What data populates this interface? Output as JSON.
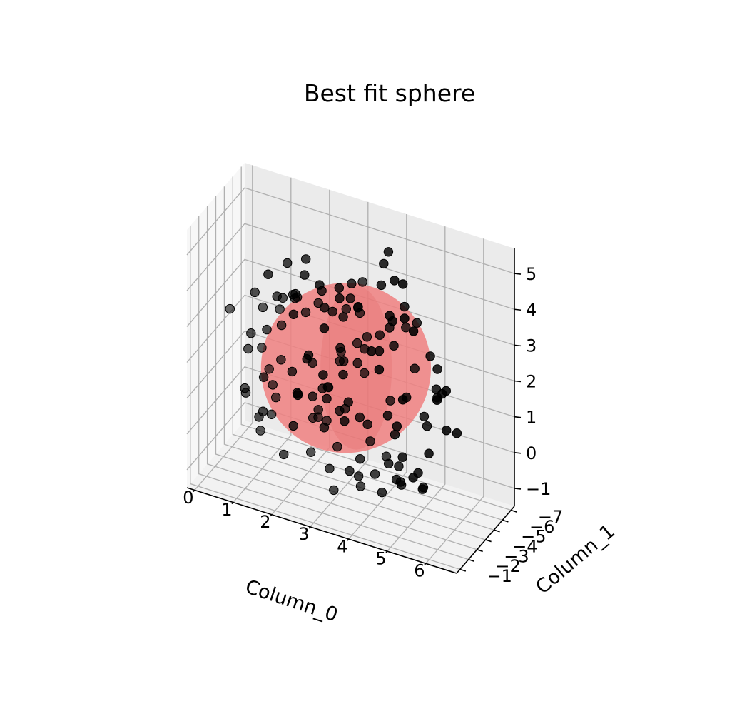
{
  "chart_data": {
    "type": "scatter",
    "title": "Best fit sphere",
    "xlabel": "Column_0",
    "ylabel": "Column_1",
    "zlabel": "",
    "grid": true,
    "xlim": [
      -0.2,
      6.8
    ],
    "ylim": [
      -7.4,
      -0.6
    ],
    "zlim": [
      -1.5,
      5.7
    ],
    "xticks": [
      {
        "v": 0,
        "label": "0"
      },
      {
        "v": 1,
        "label": "1"
      },
      {
        "v": 2,
        "label": "2"
      },
      {
        "v": 3,
        "label": "3"
      },
      {
        "v": 4,
        "label": "4"
      },
      {
        "v": 5,
        "label": "5"
      },
      {
        "v": 6,
        "label": "6"
      }
    ],
    "yticks": [
      {
        "v": -7,
        "label": "−7"
      },
      {
        "v": -6,
        "label": "−6"
      },
      {
        "v": -5,
        "label": "−5"
      },
      {
        "v": -4,
        "label": "−4"
      },
      {
        "v": -3,
        "label": "−3"
      },
      {
        "v": -2,
        "label": "−2"
      },
      {
        "v": -1,
        "label": "−1"
      }
    ],
    "zticks": [
      {
        "v": -1,
        "label": "−1"
      },
      {
        "v": 0,
        "label": "0"
      },
      {
        "v": 1,
        "label": "1"
      },
      {
        "v": 2,
        "label": "2"
      },
      {
        "v": 3,
        "label": "3"
      },
      {
        "v": 4,
        "label": "4"
      },
      {
        "v": 5,
        "label": "5"
      }
    ],
    "sphere": {
      "center": [
        3.2,
        -3.9,
        2.1
      ],
      "radius": 3.3,
      "color": "#f08080",
      "opacity": 0.85
    },
    "point_color": "#000000",
    "points": [
      [
        5.74,
        -4.17,
        2.25
      ],
      [
        4.43,
        -6.27,
        2.89
      ],
      [
        1.75,
        -0.69,
        4.18
      ],
      [
        2.22,
        -4.43,
        0.82
      ],
      [
        2.44,
        -4.78,
        -0.07
      ],
      [
        5.0,
        -4.23,
        -0.31
      ],
      [
        4.19,
        -0.74,
        4.0
      ],
      [
        2.48,
        -2.43,
        3.81
      ],
      [
        5.22,
        -3.76,
        -0.56
      ],
      [
        3.71,
        -0.86,
        3.3
      ],
      [
        5.49,
        -2.71,
        1.85
      ],
      [
        2.0,
        -6.78,
        2.0
      ],
      [
        0.69,
        -6.13,
        3.24
      ],
      [
        3.98,
        -5.5,
        3.38
      ],
      [
        4.35,
        -0.84,
        3.19
      ],
      [
        1.28,
        -6.43,
        2.24
      ],
      [
        1.54,
        -5.09,
        1.1
      ],
      [
        2.99,
        -0.72,
        0.55
      ],
      [
        4.68,
        -5.1,
        -0.79
      ],
      [
        1.06,
        -2.09,
        2.4
      ],
      [
        1.52,
        -3.4,
        3.66
      ],
      [
        1.53,
        -1.42,
        0.46
      ],
      [
        3.17,
        -3.28,
        1.06
      ],
      [
        4.79,
        -2.9,
        0.17
      ],
      [
        4.26,
        -3.33,
        -0.86
      ],
      [
        3.33,
        -3.73,
        -0.69
      ],
      [
        2.0,
        -1.76,
        3.47
      ],
      [
        2.29,
        -2.02,
        4.25
      ],
      [
        2.74,
        -5.81,
        -0.07
      ],
      [
        4.16,
        -6.25,
        4.12
      ],
      [
        4.51,
        -3.9,
        -0.57
      ],
      [
        2.96,
        -4.66,
        1.62
      ],
      [
        3.84,
        -3.54,
        0.84
      ],
      [
        3.39,
        -0.89,
        2.46
      ],
      [
        3.32,
        -4.02,
        4.46
      ],
      [
        5.69,
        -4.43,
        1.06
      ],
      [
        2.82,
        -4.04,
        3.5
      ],
      [
        0.76,
        -3.06,
        0.93
      ],
      [
        5.85,
        -2.51,
        2.79
      ],
      [
        4.26,
        -5.09,
        0.5
      ],
      [
        2.32,
        -5.36,
        3.08
      ],
      [
        3.2,
        -1.85,
        2.12
      ],
      [
        1.85,
        -5.14,
        3.89
      ],
      [
        1.7,
        -6.3,
        1.28
      ],
      [
        1.66,
        -5.21,
        0.45
      ],
      [
        5.2,
        -4.59,
        0.2
      ],
      [
        3.42,
        -0.64,
        1.6
      ],
      [
        3.03,
        -0.79,
        1.5
      ],
      [
        4.93,
        -0.81,
        1.07
      ],
      [
        4.95,
        -1.19,
        2.53
      ],
      [
        1.96,
        -1.88,
        2.46
      ],
      [
        0.88,
        -2.63,
        0.96
      ],
      [
        3.95,
        -6.2,
        4.16
      ],
      [
        2.02,
        -4.53,
        4.56
      ],
      [
        3.99,
        -4.76,
        5.04
      ],
      [
        1.28,
        -3.29,
        2.68
      ],
      [
        3.1,
        -2.42,
        -0.34
      ],
      [
        0.85,
        -0.9,
        3.77
      ],
      [
        3.6,
        -1.98,
        1.62
      ],
      [
        4.29,
        -0.69,
        0.05
      ],
      [
        4.38,
        -1.03,
        4.16
      ],
      [
        4.18,
        -6.35,
        3.14
      ],
      [
        2.7,
        -5.36,
        3.76
      ],
      [
        3.61,
        -3.67,
        0.92
      ],
      [
        3.7,
        -3.04,
        4.19
      ],
      [
        1.08,
        -3.75,
        0.2
      ],
      [
        3.03,
        -4.0,
        2.57
      ],
      [
        2.04,
        -3.21,
        3.96
      ],
      [
        4.38,
        -1.41,
        1.14
      ],
      [
        4.97,
        -2.4,
        -0.15
      ],
      [
        2.33,
        -2.11,
        4.27
      ],
      [
        2.16,
        -0.82,
        4.23
      ],
      [
        3.89,
        -4.93,
        4.36
      ],
      [
        3.47,
        -1.24,
        -0.49
      ],
      [
        2.92,
        -1.92,
        4.36
      ],
      [
        4.45,
        -3.35,
        3.8
      ],
      [
        5.15,
        -5.78,
        1.35
      ],
      [
        5.33,
        -2.33,
        3.24
      ],
      [
        4.16,
        -4.54,
        5.49
      ],
      [
        3.73,
        -1.53,
        4.58
      ],
      [
        4.45,
        -4.89,
        -0.24
      ],
      [
        2.49,
        -4.86,
        0.73
      ],
      [
        2.64,
        -3.69,
        1.39
      ],
      [
        3.85,
        -2.32,
        2.89
      ],
      [
        1.84,
        -1.31,
        1.05
      ],
      [
        1.96,
        -2.08,
        4.13
      ],
      [
        2.28,
        -2.33,
        1.52
      ],
      [
        4.16,
        -4.47,
        0.94
      ],
      [
        4.61,
        -3.14,
        3.41
      ],
      [
        4.07,
        -6.65,
        0.75
      ],
      [
        4.22,
        -1.46,
        3.65
      ],
      [
        5.69,
        -3.37,
        3.06
      ],
      [
        4.43,
        -3.34,
        0.0
      ],
      [
        4.42,
        -4.13,
        0.59
      ],
      [
        5.42,
        -3.37,
        1.38
      ],
      [
        0.99,
        -2.74,
        2.63
      ],
      [
        1.71,
        -3.75,
        4.56
      ],
      [
        1.57,
        -1.38,
        2.8
      ],
      [
        4.28,
        -2.98,
        3.64
      ],
      [
        2.8,
        -2.46,
        1.19
      ],
      [
        3.53,
        -6.31,
        1.5
      ],
      [
        4.74,
        -3.8,
        4.36
      ],
      [
        4.28,
        -2.42,
        -0.09
      ],
      [
        3.45,
        -3.3,
        4.29
      ],
      [
        2.47,
        -4.37,
        3.87
      ],
      [
        3.2,
        -3.58,
        3.61
      ],
      [
        3.79,
        -5.14,
        2.43
      ],
      [
        1.82,
        -1.91,
        1.35
      ],
      [
        1.07,
        -3.32,
        0.16
      ],
      [
        1.68,
        -3.47,
        -0.72
      ],
      [
        2.97,
        -5.22,
        0.7
      ],
      [
        3.36,
        -6.16,
        2.0
      ],
      [
        4.25,
        -0.78,
        4.85
      ],
      [
        5.76,
        -3.04,
        2.38
      ],
      [
        0.96,
        -3.33,
        3.6
      ],
      [
        3.76,
        -3.02,
        -0.01
      ],
      [
        3.81,
        -0.56,
        3.68
      ],
      [
        2.62,
        -5.77,
        3.33
      ],
      [
        4.7,
        -4.22,
        1.7
      ],
      [
        5.61,
        -4.29,
        2.09
      ],
      [
        2.18,
        -5.84,
        1.02
      ],
      [
        1.85,
        -0.98,
        2.41
      ],
      [
        0.7,
        -5.55,
        0.53
      ],
      [
        5.44,
        -0.79,
        4.85
      ],
      [
        3.79,
        -2.72,
        -0.4
      ],
      [
        5.55,
        -3.17,
        3.43
      ],
      [
        4.13,
        -1.12,
        4.89
      ],
      [
        3.92,
        -6.12,
        3.04
      ],
      [
        2.59,
        -1.01,
        1.96
      ],
      [
        2.5,
        -3.14,
        2.21
      ],
      [
        1.67,
        -2.21,
        1.57
      ],
      [
        5.48,
        -2.67,
        -0.12
      ],
      [
        4.21,
        -1.27,
        5.57
      ],
      [
        3.35,
        -2.95,
        2.6
      ],
      [
        1.55,
        -5.19,
        -0.44
      ],
      [
        3.66,
        -0.8,
        0.91
      ],
      [
        4.78,
        -3.15,
        -0.34
      ],
      [
        1.67,
        -6.24,
        1.18
      ],
      [
        5.96,
        -4.44,
        1.07
      ],
      [
        1.93,
        -6.55,
        3.25
      ],
      [
        2.42,
        -1.21,
        4.62
      ],
      [
        3.21,
        -0.59,
        1.64
      ],
      [
        5.39,
        -2.32,
        4.54
      ]
    ]
  }
}
